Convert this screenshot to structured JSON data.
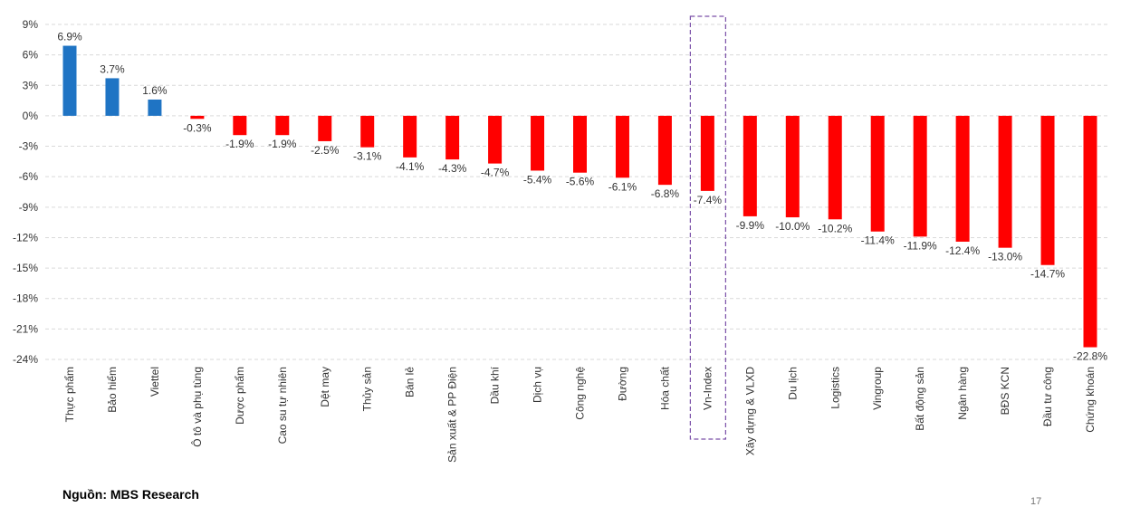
{
  "chart_data": {
    "type": "bar",
    "categories": [
      "Thực phẩm",
      "Bảo hiểm",
      "Viettel",
      "Ô tô và phụ tùng",
      "Dược phẩm",
      "Cao su tự nhiên",
      "Dệt may",
      "Thủy sản",
      "Bán lẻ",
      "Sản xuất & PP Điện",
      "Dầu khí",
      "Dịch vụ",
      "Công nghệ",
      "Đường",
      "Hóa chất",
      "Vn-Index",
      "Xây dựng & VLXD",
      "Du lịch",
      "Logistics",
      "Vingroup",
      "Bất động sản",
      "Ngân hàng",
      "BĐS KCN",
      "Đầu tư công",
      "Chứng khoán"
    ],
    "values": [
      6.9,
      3.7,
      1.6,
      -0.3,
      -1.9,
      -1.9,
      -2.5,
      -3.1,
      -4.1,
      -4.3,
      -4.7,
      -5.4,
      -5.6,
      -6.1,
      -6.8,
      -7.4,
      -9.9,
      -10.0,
      -10.2,
      -11.4,
      -11.9,
      -12.4,
      -13.0,
      -14.7,
      -22.8
    ],
    "data_labels": [
      "6.9%",
      "3.7%",
      "1.6%",
      "-0.3%",
      "-1.9%",
      "-1.9%",
      "-2.5%",
      "-3.1%",
      "-4.1%",
      "-4.3%",
      "-4.7%",
      "-5.4%",
      "-5.6%",
      "-6.1%",
      "-6.8%",
      "-7.4%",
      "-9.9%",
      "-10.0%",
      "-10.2%",
      "-11.4%",
      "-11.9%",
      "-12.4%",
      "-13.0%",
      "-14.7%",
      "-22.8%"
    ],
    "highlighted_category": "Vn-Index",
    "yticks": [
      "9%",
      "6%",
      "3%",
      "0%",
      "-3%",
      "-6%",
      "-9%",
      "-12%",
      "-15%",
      "-18%",
      "-21%",
      "-24%"
    ],
    "ylim": [
      -24,
      9
    ],
    "grid": true,
    "colors": {
      "positive": "#1f74c4",
      "negative": "#ff0000",
      "highlight_box": "#7a4fa8"
    },
    "title": "",
    "xlabel": "",
    "ylabel": ""
  },
  "footer": {
    "source": "Nguồn: MBS Research",
    "page_number": "17"
  }
}
